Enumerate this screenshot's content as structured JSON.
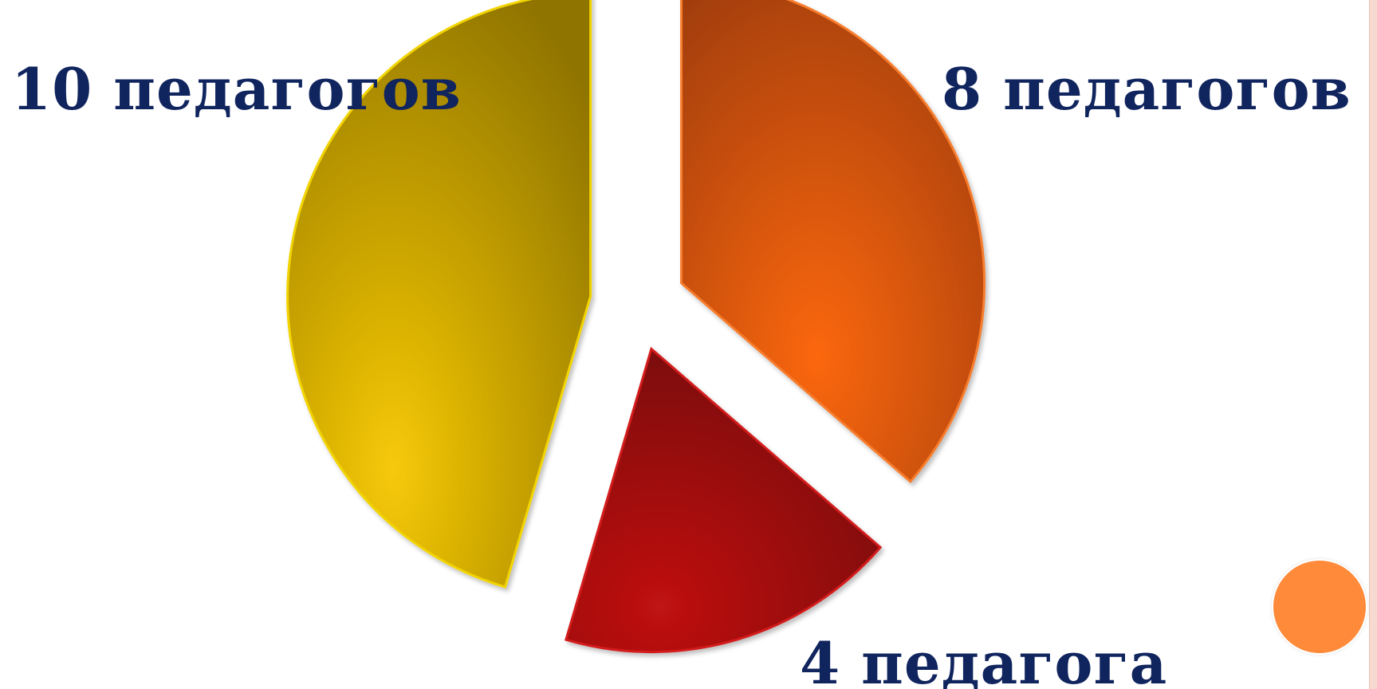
{
  "chart_data": {
    "type": "pie",
    "categories": [
      "10 педагогов",
      "8 педагогов",
      "4 педагога"
    ],
    "values": [
      10,
      8,
      4
    ],
    "order": [
      "8 педагогов",
      "4 педагога",
      "10 педагогов"
    ],
    "exploded": true,
    "legend": "none",
    "title": ""
  },
  "colors": {
    "slice_10": "#e0b400",
    "slice_8": "#e8590c",
    "slice_4": "#a10e0e",
    "label_text": "#10245e",
    "corner_dot": "#ff8a3a"
  }
}
